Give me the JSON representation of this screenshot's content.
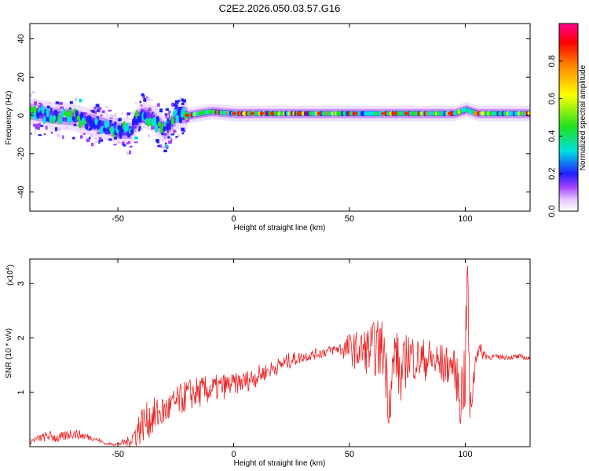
{
  "title": "C2E2.2026.050.03.57.G16",
  "colors": {
    "snr_line": "#ee2222",
    "axis": "#000000",
    "background": "#ffffff"
  },
  "chart_data": [
    {
      "type": "heatmap",
      "title": "C2E2.2026.050.03.57.G16",
      "xlabel": "Height of straight line (km)",
      "ylabel": "Frequency (Hz)",
      "xlim": [
        -88,
        128
      ],
      "ylim": [
        -50,
        48
      ],
      "x_ticks": [
        -50,
        0,
        50,
        100
      ],
      "y_ticks": [
        -40,
        -20,
        0,
        20,
        40
      ],
      "colorbar": {
        "label": "Normalized spectral amplitude",
        "range": [
          0,
          1
        ],
        "ticks": [
          "0.0",
          "0.2",
          "0.4",
          "0.6",
          "0.8"
        ],
        "colormap": [
          "#ffffff",
          "#e8c8ff",
          "#a040ff",
          "#2020ff",
          "#00e0e0",
          "#20e020",
          "#ffff00",
          "#ff8000",
          "#ff0000",
          "#ff0090"
        ]
      },
      "ridge": {
        "description_x": [
          -88,
          -80,
          -70,
          -60,
          -55,
          -50,
          -45,
          -40,
          -35,
          -30,
          -25,
          -20,
          -10,
          0,
          10,
          20,
          30,
          40,
          50,
          60,
          70,
          80,
          90,
          95,
          100,
          105,
          110,
          120,
          128
        ],
        "center_hz": [
          2,
          0,
          -1,
          -4,
          -6,
          -8,
          -8,
          1,
          -2,
          -8,
          0,
          0,
          2,
          1,
          1,
          1,
          1,
          1,
          1,
          1,
          1,
          1,
          1,
          1,
          3,
          1,
          1,
          1,
          1
        ]
      }
    },
    {
      "type": "line",
      "xlabel": "Height of straight line (km)",
      "ylabel": "SNR (10 * v/v)",
      "y_multiplier": "(x10^4)",
      "xlim": [
        -88,
        128
      ],
      "ylim": [
        0,
        3.45
      ],
      "x_ticks": [
        -50,
        0,
        50,
        100
      ],
      "y_ticks": [
        1,
        2,
        3
      ],
      "series": [
        {
          "x": [
            -88,
            -80,
            -75,
            -70,
            -65,
            -60,
            -55,
            -50,
            -45,
            -42,
            -40,
            -35,
            -30,
            -25,
            -20,
            -15,
            -10,
            -5,
            0,
            5,
            10,
            15,
            20,
            25,
            30,
            35,
            40,
            45,
            50,
            55,
            60,
            65,
            67,
            70,
            72,
            75,
            80,
            85,
            90,
            95,
            98,
            100,
            101,
            102,
            105,
            110,
            115,
            120,
            125,
            128
          ],
          "values": [
            0.1,
            0.2,
            0.15,
            0.25,
            0.2,
            0.15,
            0.05,
            0.05,
            0.1,
            0.25,
            0.4,
            0.55,
            0.65,
            0.8,
            0.95,
            1.0,
            1.05,
            1.1,
            1.15,
            1.2,
            1.3,
            1.4,
            1.5,
            1.6,
            1.65,
            1.7,
            1.75,
            1.8,
            1.8,
            1.75,
            1.8,
            1.8,
            0.8,
            1.8,
            1.2,
            1.7,
            1.6,
            1.6,
            1.5,
            1.5,
            0.9,
            1.4,
            3.4,
            0.6,
            1.8,
            1.65,
            1.65,
            1.65,
            1.65,
            1.6
          ],
          "amplitude": [
            0.05,
            0.1,
            0.1,
            0.1,
            0.08,
            0.05,
            0.02,
            0.04,
            0.1,
            0.3,
            0.35,
            0.35,
            0.3,
            0.3,
            0.3,
            0.3,
            0.25,
            0.25,
            0.2,
            0.2,
            0.2,
            0.15,
            0.15,
            0.15,
            0.1,
            0.1,
            0.1,
            0.1,
            0.3,
            0.4,
            0.5,
            0.6,
            0.5,
            0.6,
            0.5,
            0.5,
            0.4,
            0.4,
            0.4,
            0.3,
            0.6,
            0.8,
            0.4,
            0.4,
            0.2,
            0.05,
            0.05,
            0.05,
            0.05,
            0.05
          ]
        }
      ]
    }
  ],
  "labels": {
    "top_xlabel": "Height of straight line (km)",
    "top_ylabel": "Frequency (Hz)",
    "bottom_xlabel": "Height of straight line (km)",
    "bottom_ylabel": "SNR (10 * v/v)",
    "bottom_multiplier": "(x10",
    "bottom_multiplier_exp": "4",
    "bottom_multiplier_close": ")",
    "colorbar_label": "Normalized spectral amplitude"
  }
}
